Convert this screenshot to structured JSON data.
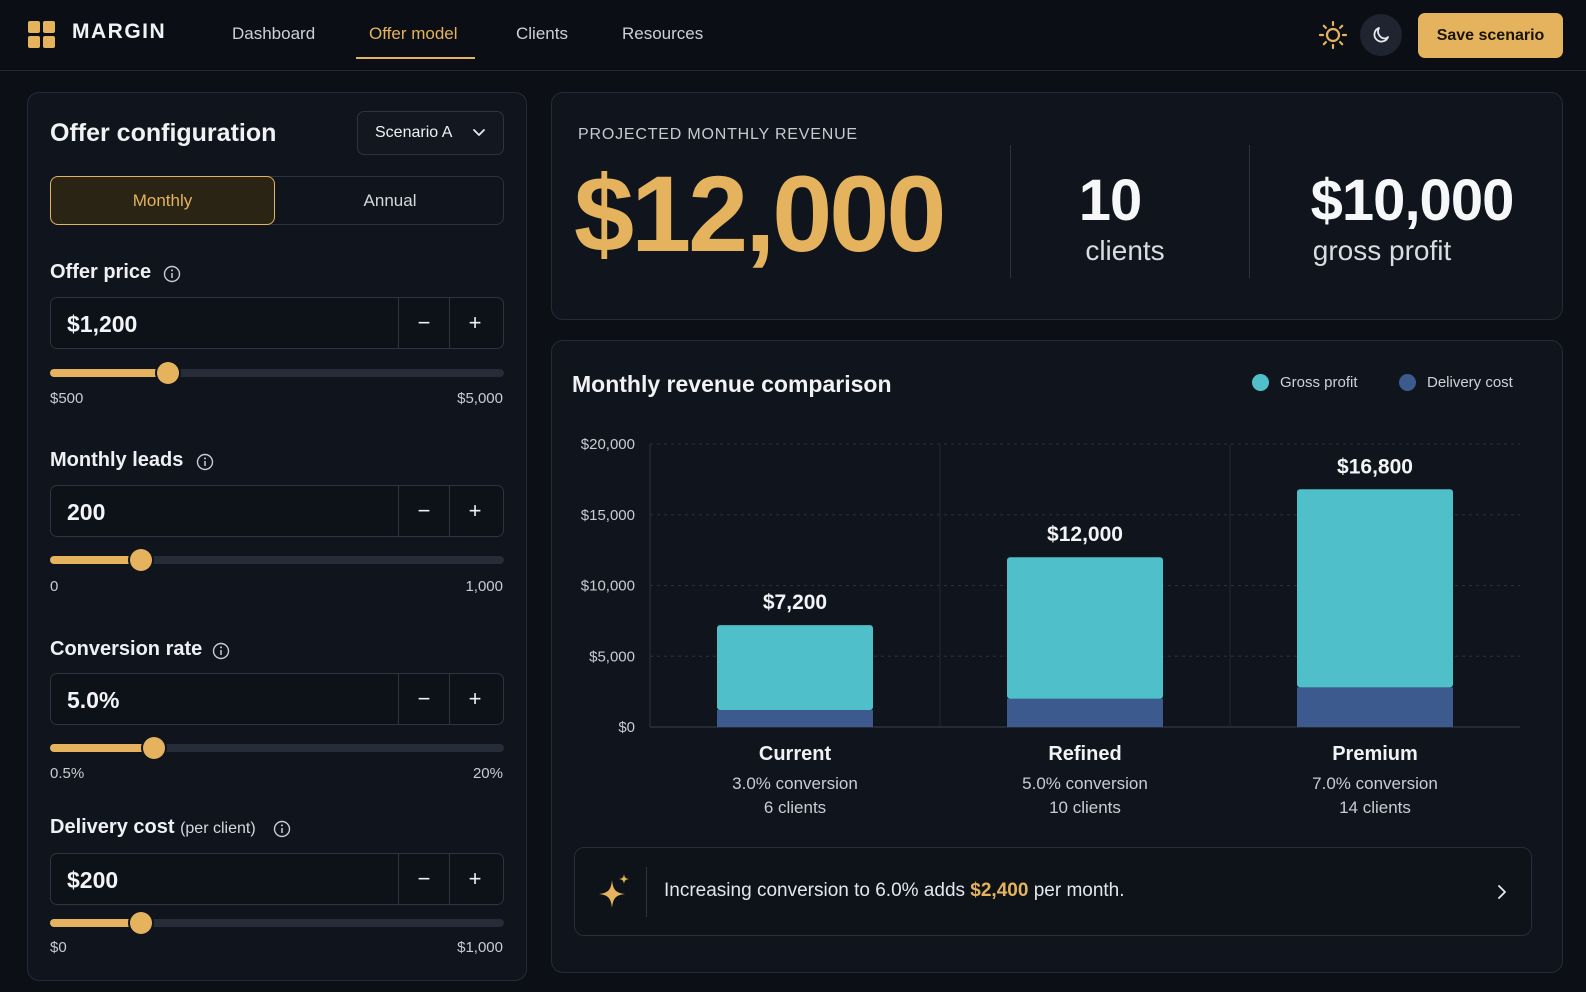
{
  "app": {
    "name": "MARGIN"
  },
  "nav": {
    "items": [
      {
        "label": "Dashboard"
      },
      {
        "label": "Offer model",
        "active": true
      },
      {
        "label": "Clients"
      },
      {
        "label": "Resources"
      }
    ],
    "save_label": "Save scenario",
    "theme_icons": [
      "sun-icon",
      "moon-icon"
    ]
  },
  "config": {
    "title": "Offer configuration",
    "scenario": "Scenario A",
    "billing": {
      "options": [
        "Monthly",
        "Annual"
      ],
      "selected": "Monthly"
    },
    "fields": {
      "price": {
        "label": "Offer price",
        "value": "$1,200",
        "min": "$500",
        "max": "$5,000",
        "fraction": 0.26
      },
      "leads": {
        "label": "Monthly leads",
        "value": "200",
        "min": "0",
        "max": "1,000",
        "fraction": 0.2
      },
      "conversion": {
        "label": "Conversion rate",
        "value": "5.0%",
        "min": "0.5%",
        "max": "20%",
        "fraction": 0.23
      },
      "delivery": {
        "label": "Delivery cost",
        "label_sub": "(per client)",
        "value": "$200",
        "min": "$0",
        "max": "$1,000",
        "fraction": 0.2
      }
    },
    "minus": "−",
    "plus": "+"
  },
  "kpi": {
    "label": "PROJECTED MONTHLY REVENUE",
    "revenue": "$12,000",
    "clients": "10",
    "clients_label": "clients",
    "profit": "$10,000",
    "profit_label": "gross profit"
  },
  "chart": {
    "title": "Monthly revenue comparison",
    "legend": [
      {
        "name": "Gross profit",
        "color": "#4fc0c9"
      },
      {
        "name": "Delivery cost",
        "color": "#3d5a8f"
      }
    ]
  },
  "chart_data": {
    "type": "bar",
    "stacked": true,
    "title": "Monthly revenue comparison",
    "categories": [
      "Current",
      "Refined",
      "Premium"
    ],
    "category_details": [
      {
        "conversion": "3.0% conversion",
        "clients": "6 clients"
      },
      {
        "conversion": "5.0% conversion",
        "clients": "10 clients"
      },
      {
        "conversion": "7.0% conversion",
        "clients": "14 clients"
      }
    ],
    "series": [
      {
        "name": "Delivery cost",
        "values": [
          1200,
          2000,
          2800
        ],
        "color": "#3d5a8f"
      },
      {
        "name": "Gross profit",
        "values": [
          6000,
          10000,
          14000
        ],
        "color": "#4fc0c9"
      }
    ],
    "totals_labels": [
      "$7,200",
      "$12,000",
      "$16,800"
    ],
    "ylim": [
      0,
      20000
    ],
    "yticks": [
      "$0",
      "$5,000",
      "$10,000",
      "$15,000",
      "$20,000"
    ],
    "ytick_values": [
      0,
      5000,
      10000,
      15000,
      20000
    ],
    "grid": true,
    "legend_position": "top-right"
  },
  "insight": {
    "prefix": "Increasing conversion to 6.0% adds",
    "amount": "$2,400",
    "suffix": "per month."
  }
}
